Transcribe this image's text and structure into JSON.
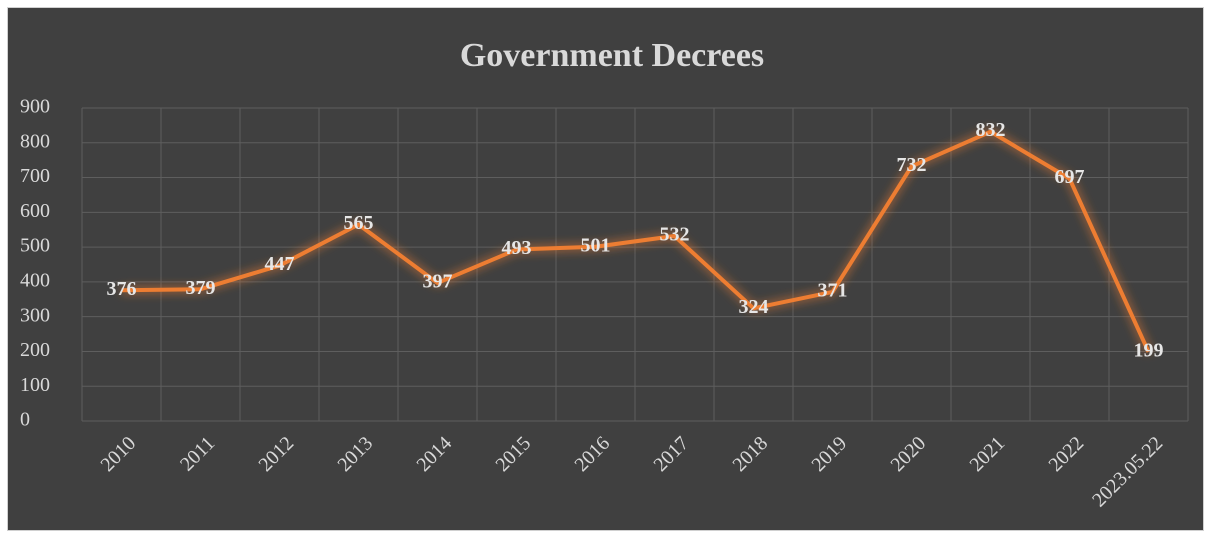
{
  "chart_data": {
    "type": "line",
    "title": "Government Decrees",
    "categories": [
      "2010",
      "2011",
      "2012",
      "2013",
      "2014",
      "2015",
      "2016",
      "2017",
      "2018",
      "2019",
      "2020",
      "2021",
      "2022",
      "2023.05.22"
    ],
    "values": [
      376,
      379,
      447,
      565,
      397,
      493,
      501,
      532,
      324,
      371,
      732,
      832,
      697,
      199
    ],
    "color": "#ed7d31",
    "ylim": [
      0,
      900
    ],
    "yticks": [
      0,
      100,
      200,
      300,
      400,
      500,
      600,
      700,
      800,
      900
    ],
    "grid": true
  }
}
